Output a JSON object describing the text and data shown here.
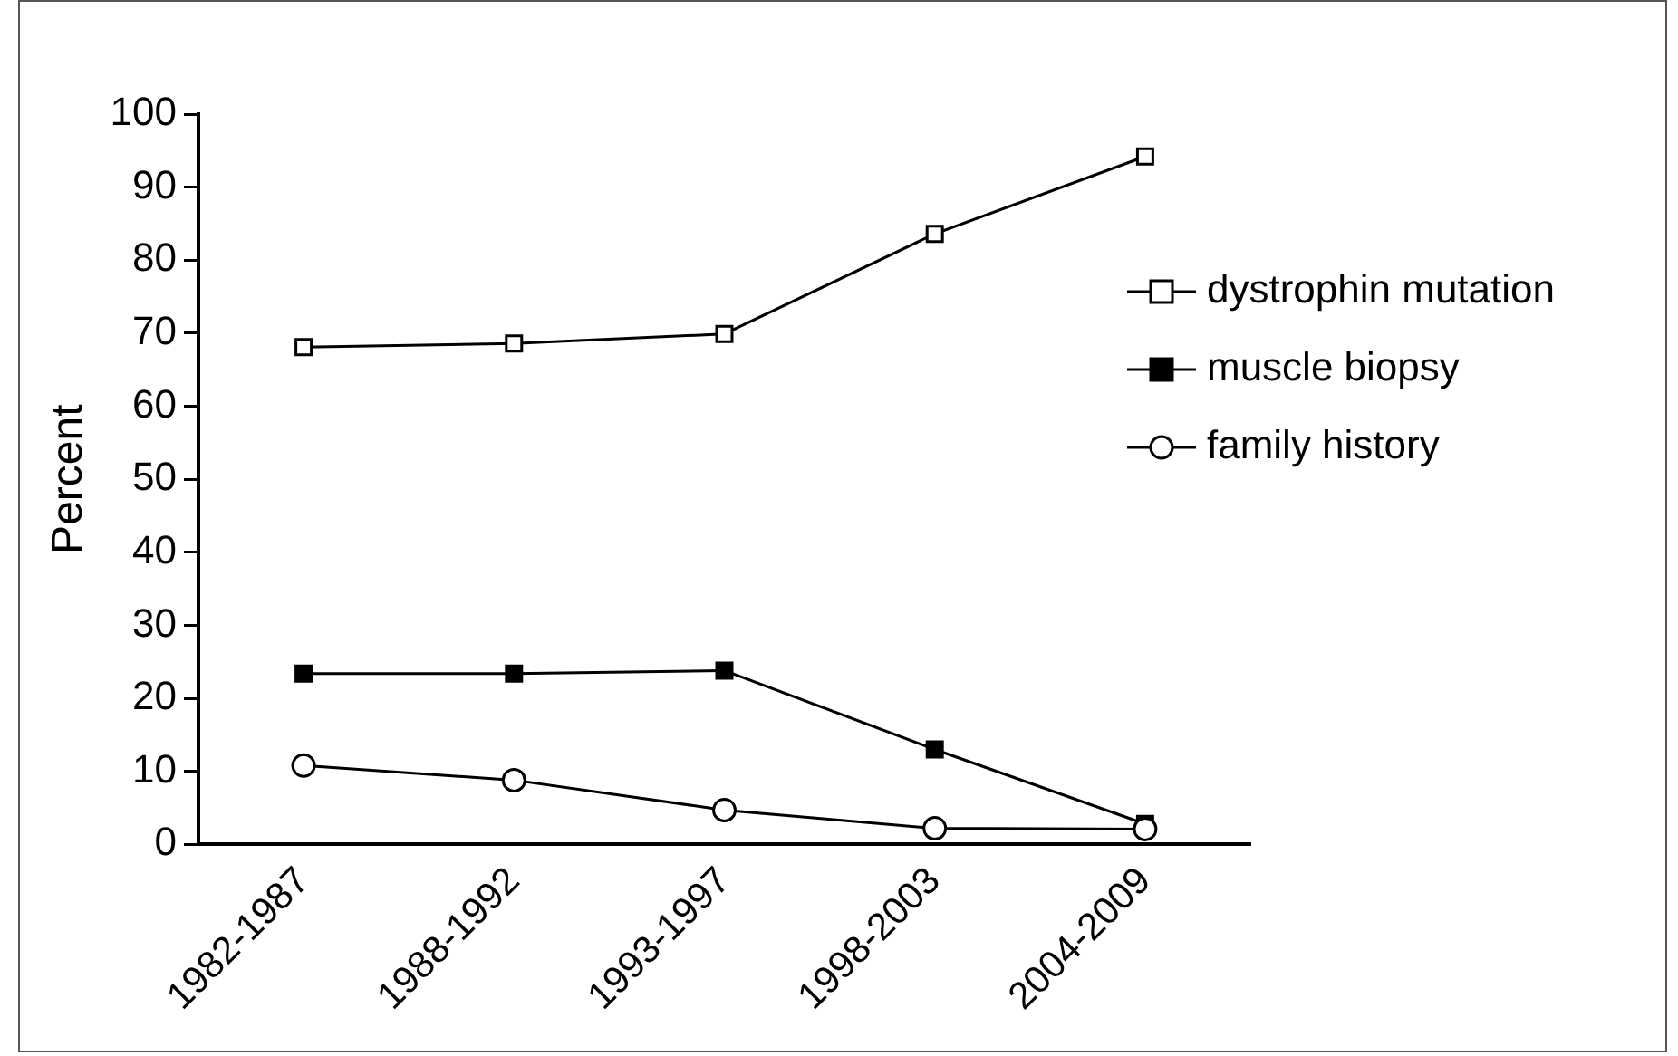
{
  "chart_data": {
    "type": "line",
    "ylabel": "Percent",
    "categories": [
      "1982-1987",
      "1988-1992",
      "1993-1997",
      "1998-2003",
      "2004-2009"
    ],
    "ylim": [
      0,
      100
    ],
    "yticks": [
      0,
      10,
      20,
      30,
      40,
      50,
      60,
      70,
      80,
      90,
      100
    ],
    "grid": false,
    "legend": "right",
    "line_style": "solid",
    "series": [
      {
        "name": "dystrophin mutation",
        "color": "#ffffff",
        "marker": "square",
        "values": [
          68.1,
          68.6,
          69.9,
          83.6,
          94.2
        ]
      },
      {
        "name": "muscle biopsy",
        "color": "#000000",
        "marker": "square",
        "values": [
          23.4,
          23.4,
          23.8,
          13.0,
          2.8
        ]
      },
      {
        "name": "family history",
        "color": "#ffffff",
        "marker": "circle",
        "values": [
          10.8,
          8.8,
          4.7,
          2.2,
          2.1
        ]
      }
    ]
  }
}
